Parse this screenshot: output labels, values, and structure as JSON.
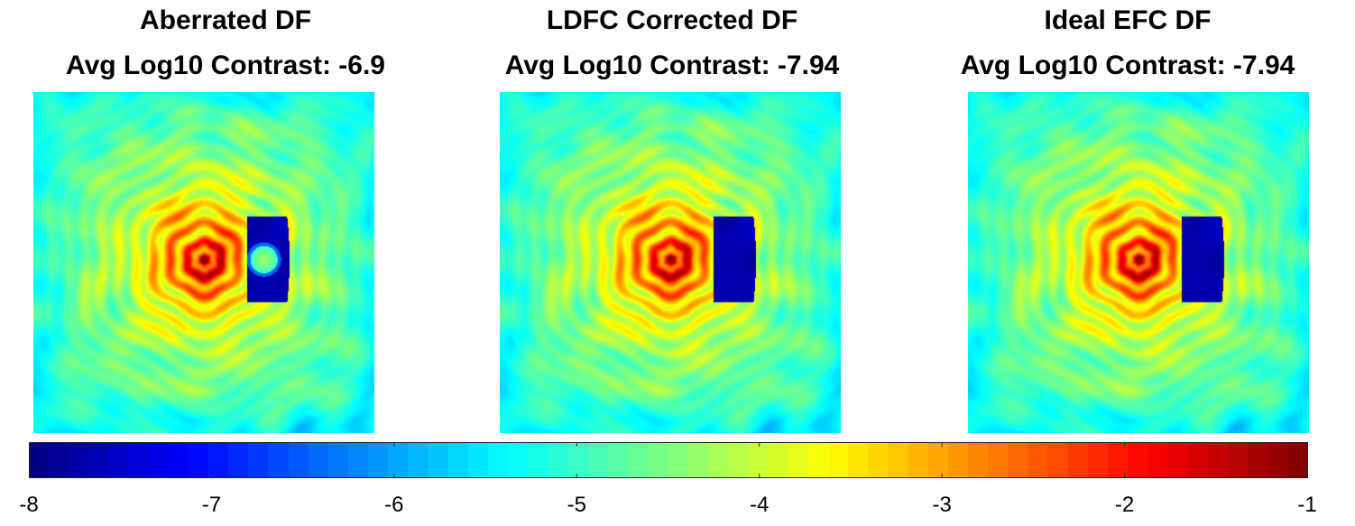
{
  "chart_data": {
    "type": "heatmap",
    "colormap": "jet",
    "clim": [
      -8,
      -1
    ],
    "colorbar": {
      "orientation": "horizontal",
      "location": "bottom",
      "ticks": [
        -8,
        -7,
        -6,
        -5,
        -4,
        -3,
        -2,
        -1
      ],
      "tick_labels": [
        "-8",
        "-7",
        "-6",
        "-5",
        "-4",
        "-3",
        "-2",
        "-1"
      ]
    },
    "panels": [
      {
        "title": "Aberrated DF",
        "subtitle": "Avg Log10 Contrast: -6.9",
        "avg_log10_contrast": -6.9,
        "dark_hole_side": "right",
        "dark_hole_has_residual_spot": true
      },
      {
        "title": "LDFC Corrected DF",
        "subtitle": "Avg Log10 Contrast: -7.94",
        "avg_log10_contrast": -7.94,
        "dark_hole_side": "right",
        "dark_hole_has_residual_spot": false
      },
      {
        "title": "Ideal EFC DF",
        "subtitle": "Avg Log10 Contrast: -7.94",
        "avg_log10_contrast": -7.94,
        "dark_hole_side": "right",
        "dark_hole_has_residual_spot": false
      }
    ]
  }
}
